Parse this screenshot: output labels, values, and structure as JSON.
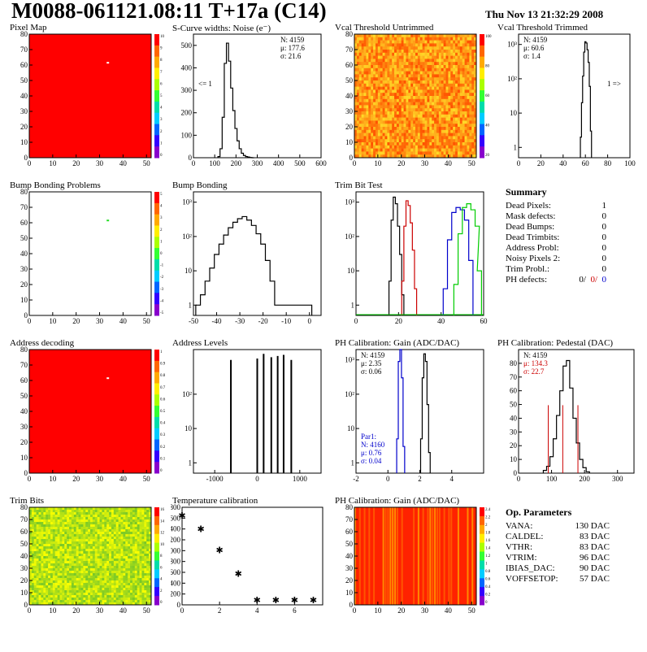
{
  "header": {
    "title": "M0088-061121.08:11 T+17a (C14)",
    "timestamp": "Thu Nov 13 21:32:29 2008"
  },
  "colors": {
    "hist_black": "#000000",
    "hist_red": "#cc0000",
    "hist_blue": "#0000cc",
    "hist_green": "#00cc00",
    "map_red": "#ff0000"
  },
  "chart_data": [
    {
      "id": "pixel-map",
      "type": "heatmap",
      "title": "Pixel Map",
      "xlim": [
        0,
        52
      ],
      "ylim": [
        0,
        80
      ],
      "xticks": [
        "0",
        "10",
        "20",
        "30",
        "40",
        "50"
      ],
      "yticks": [
        "0",
        "10",
        "20",
        "30",
        "40",
        "50",
        "60",
        "70",
        "80"
      ],
      "fill": "uniform-max",
      "scale_max": "10",
      "scale_ticks": [
        "10",
        "9",
        "8",
        "7",
        "6",
        "5",
        "4",
        "3",
        "2",
        "1",
        "0"
      ],
      "highlight_cells": [
        {
          "x": 33,
          "y": 62
        }
      ]
    },
    {
      "id": "s-curve",
      "type": "line",
      "title": "S-Curve widths: Noise (e⁻)",
      "xlim": [
        0,
        600
      ],
      "ylim": [
        0,
        550
      ],
      "xticks": [
        "0",
        "100",
        "200",
        "300",
        "400",
        "500",
        "600"
      ],
      "yticks": [
        "0",
        "100",
        "200",
        "300",
        "400",
        "500"
      ],
      "series": [
        {
          "x": [
            120,
            130,
            140,
            150,
            160,
            170,
            180,
            190,
            200,
            210,
            220,
            230,
            240,
            250,
            260,
            270,
            280
          ],
          "values": [
            5,
            40,
            180,
            420,
            510,
            430,
            310,
            210,
            130,
            75,
            40,
            20,
            10,
            5,
            3,
            1,
            0
          ]
        }
      ],
      "stats": [
        "N: 4159",
        "μ: 177.6",
        "σ: 21.6"
      ],
      "annotation": "<= 1"
    },
    {
      "id": "vcal-untrimmed",
      "type": "heatmap",
      "title": "Vcal Threshold Untrimmed",
      "xlim": [
        0,
        52
      ],
      "ylim": [
        0,
        80
      ],
      "xticks": [
        "0",
        "10",
        "20",
        "30",
        "40",
        "50"
      ],
      "yticks": [
        "0",
        "10",
        "20",
        "30",
        "40",
        "50",
        "60",
        "70",
        "80"
      ],
      "fill": "noise-orange",
      "scale_ticks": [
        "100",
        "80",
        "60",
        "40",
        "20"
      ]
    },
    {
      "id": "vcal-trimmed",
      "type": "line",
      "title": "Vcal Threshold Trimmed",
      "log_y": true,
      "xlim": [
        0,
        100
      ],
      "ylim": [
        0.5,
        2000
      ],
      "xticks": [
        "0",
        "20",
        "40",
        "60",
        "80",
        "100"
      ],
      "yticks": [
        "1",
        "10",
        "10²",
        "10³"
      ],
      "series": [
        {
          "x": [
            56,
            57,
            58,
            59,
            60,
            61,
            62,
            63,
            64,
            65
          ],
          "values": [
            2,
            20,
            120,
            600,
            1200,
            1100,
            700,
            300,
            60,
            3
          ]
        }
      ],
      "stats": [
        "N: 4159",
        "μ: 60.6",
        "σ:  1.4"
      ],
      "annotation": "1 =>"
    },
    {
      "id": "bump-problems",
      "type": "heatmap",
      "title": "Bump Bonding Problems",
      "xlim": [
        0,
        52
      ],
      "ylim": [
        0,
        80
      ],
      "xticks": [
        "0",
        "10",
        "20",
        "30",
        "40",
        "50"
      ],
      "yticks": [
        "0",
        "10",
        "20",
        "30",
        "40",
        "50",
        "60",
        "70",
        "80"
      ],
      "fill": "empty",
      "scale_ticks": [
        "5",
        "4",
        "3",
        "2",
        "1",
        "0",
        "-1",
        "-2",
        "-3",
        "-4",
        "-5"
      ],
      "highlight_cells": [
        {
          "x": 33,
          "y": 62
        }
      ]
    },
    {
      "id": "bump-bonding",
      "type": "line",
      "title": "Bump Bonding",
      "log_y": true,
      "xlim": [
        -50,
        5
      ],
      "ylim": [
        0.5,
        2000
      ],
      "xticks": [
        "-50",
        "-40",
        "-30",
        "-20",
        "-10",
        "0"
      ],
      "yticks": [
        "1",
        "10",
        "10²",
        "10³"
      ],
      "series": [
        {
          "x": [
            -48,
            -46,
            -44,
            -42,
            -40,
            -38,
            -36,
            -34,
            -32,
            -30,
            -28,
            -26,
            -24,
            -22,
            -20,
            -18,
            -16,
            -14,
            0
          ],
          "values": [
            1,
            2,
            5,
            12,
            30,
            60,
            110,
            180,
            260,
            330,
            380,
            300,
            210,
            120,
            60,
            20,
            5,
            1,
            1
          ]
        }
      ]
    },
    {
      "id": "trim-bit-test",
      "type": "line",
      "title": "Trim Bit Test",
      "log_y": true,
      "xlim": [
        0,
        60
      ],
      "ylim": [
        0.5,
        2000
      ],
      "xticks": [
        "0",
        "20",
        "40",
        "60"
      ],
      "yticks": [
        "1",
        "10",
        "10²",
        "10³"
      ],
      "series": [
        {
          "color": "#000000",
          "x": [
            16,
            17,
            18,
            19,
            20,
            21,
            22
          ],
          "values": [
            5,
            300,
            1400,
            900,
            200,
            30,
            2
          ]
        },
        {
          "color": "#cc0000",
          "x": [
            22,
            23,
            24,
            25,
            26,
            27,
            28
          ],
          "values": [
            5,
            200,
            1100,
            800,
            250,
            40,
            3
          ]
        },
        {
          "color": "#0000cc",
          "x": [
            42,
            44,
            46,
            48,
            50,
            52,
            54
          ],
          "values": [
            3,
            80,
            500,
            700,
            600,
            300,
            20
          ]
        },
        {
          "color": "#00cc00",
          "x": [
            47,
            49,
            51,
            53,
            55,
            57,
            58
          ],
          "values": [
            4,
            120,
            700,
            900,
            600,
            200,
            10
          ]
        }
      ]
    },
    {
      "id": "address-decoding",
      "type": "heatmap",
      "title": "Address decoding",
      "xlim": [
        0,
        52
      ],
      "ylim": [
        0,
        80
      ],
      "xticks": [
        "0",
        "10",
        "20",
        "30",
        "40",
        "50"
      ],
      "yticks": [
        "0",
        "10",
        "20",
        "30",
        "40",
        "50",
        "60",
        "70",
        "80"
      ],
      "fill": "uniform-max",
      "scale_ticks": [
        "1",
        "0.9",
        "0.8",
        "0.7",
        "0.6",
        "0.5",
        "0.4",
        "0.3",
        "0.2",
        "0.1",
        "0"
      ],
      "highlight_cells": [
        {
          "x": 33,
          "y": 62
        }
      ]
    },
    {
      "id": "address-levels",
      "type": "line",
      "title": "Address Levels",
      "log_y": true,
      "xlim": [
        -1500,
        1500
      ],
      "ylim": [
        0.5,
        2000
      ],
      "xticks": [
        "-1000",
        "0",
        "1000"
      ],
      "yticks": [
        "1",
        "10",
        "10²"
      ],
      "series": [
        {
          "x": [
            -620,
            0,
            150,
            330,
            480,
            620,
            800
          ],
          "values": [
            1000,
            1100,
            1500,
            1200,
            1300,
            1400,
            1000
          ]
        }
      ]
    },
    {
      "id": "ph-gain",
      "type": "line",
      "title": "PH Calibration: Gain (ADC/DAC)",
      "log_y": true,
      "xlim": [
        -2,
        6
      ],
      "ylim": [
        0.5,
        2000
      ],
      "xticks": [
        "-2",
        "0",
        "2",
        "4"
      ],
      "yticks": [
        "1",
        "10",
        "10²",
        "10³"
      ],
      "series": [
        {
          "color": "#000000",
          "x": [
            2.1,
            2.2,
            2.3,
            2.4,
            2.5,
            2.6
          ],
          "values": [
            5,
            300,
            1500,
            900,
            50,
            2
          ]
        },
        {
          "color": "#0000cc",
          "x": [
            0.6,
            0.7,
            0.8,
            0.9,
            1.0
          ],
          "values": [
            5,
            900,
            2000,
            300,
            3
          ]
        }
      ],
      "stats": [
        "N: 4159",
        "μ: 2.35",
        "σ: 0.06"
      ],
      "stats2": [
        "Par1:",
        "N: 4160",
        "μ: 0.76",
        "σ: 0.04"
      ]
    },
    {
      "id": "ph-pedestal",
      "type": "line",
      "title": "PH Calibration: Pedestal (DAC)",
      "xlim": [
        0,
        350
      ],
      "ylim": [
        0,
        90
      ],
      "xticks": [
        "0",
        "100",
        "200",
        "300"
      ],
      "yticks": [
        "0",
        "10",
        "20",
        "30",
        "40",
        "50",
        "60",
        "70",
        "80"
      ],
      "series": [
        {
          "x": [
            80,
            90,
            100,
            110,
            120,
            130,
            140,
            150,
            160,
            170,
            180,
            190,
            200,
            210
          ],
          "values": [
            2,
            5,
            12,
            25,
            42,
            60,
            78,
            82,
            62,
            40,
            22,
            10,
            4,
            1
          ]
        }
      ],
      "markers": [
        90,
        134,
        180
      ],
      "stats": [
        "N: 4159",
        "μ: 134.3",
        "σ: 22.7"
      ]
    },
    {
      "id": "trim-bits",
      "type": "heatmap",
      "title": "Trim Bits",
      "xlim": [
        0,
        52
      ],
      "ylim": [
        0,
        80
      ],
      "xticks": [
        "0",
        "10",
        "20",
        "30",
        "40",
        "50"
      ],
      "yticks": [
        "0",
        "10",
        "20",
        "30",
        "40",
        "50",
        "60",
        "70",
        "80"
      ],
      "fill": "noise-green",
      "scale_ticks": [
        "16",
        "14",
        "12",
        "10",
        "8",
        "6",
        "4",
        "2",
        "0"
      ]
    },
    {
      "id": "temperature",
      "type": "scatter",
      "title": "Temperature calibration",
      "xlim": [
        0,
        7.5
      ],
      "ylim": [
        0,
        1800
      ],
      "xticks": [
        "0",
        "2",
        "4",
        "6"
      ],
      "yticks": [
        "0",
        "200",
        "400",
        "600",
        "800",
        "1000",
        "1200",
        "1400",
        "1600",
        "1800"
      ],
      "x": [
        0,
        1,
        2,
        3,
        4,
        5,
        6,
        7
      ],
      "values": [
        1650,
        1400,
        1010,
        580,
        90,
        90,
        90,
        90
      ]
    },
    {
      "id": "ph-gain-map",
      "type": "heatmap",
      "title": "PH Calibration: Gain (ADC/DAC)",
      "xlim": [
        0,
        52
      ],
      "ylim": [
        0,
        80
      ],
      "xticks": [
        "0",
        "10",
        "20",
        "30",
        "40",
        "50"
      ],
      "yticks": [
        "0",
        "10",
        "20",
        "30",
        "40",
        "50",
        "60",
        "70",
        "80"
      ],
      "fill": "stripes-red",
      "scale_ticks": [
        "2.4",
        "2.2",
        "2",
        "1.8",
        "1.6",
        "1.4",
        "1.2",
        "1",
        "0.8",
        "0.6",
        "0.4",
        "0.2",
        "0"
      ]
    }
  ],
  "summary": {
    "title": "Summary",
    "rows": [
      {
        "label": "Dead Pixels:",
        "value": "1"
      },
      {
        "label": "Mask defects:",
        "value": "0"
      },
      {
        "label": "Dead Bumps:",
        "value": "0"
      },
      {
        "label": "Dead Trimbits:",
        "value": "0"
      },
      {
        "label": "Address Probl:",
        "value": "0"
      },
      {
        "label": "Noisy Pixels 2:",
        "value": "0"
      },
      {
        "label": "Trim Probl.:",
        "value": "0"
      }
    ],
    "ph_label": "PH defects:",
    "ph_values": [
      {
        "value": "0/",
        "color": "#000000"
      },
      {
        "value": "0/",
        "color": "#cc0000"
      },
      {
        "value": "0",
        "color": "#0000cc"
      }
    ]
  },
  "op_params": {
    "title": "Op. Parameters",
    "rows": [
      {
        "label": "VANA:",
        "value": "130 DAC"
      },
      {
        "label": "CALDEL:",
        "value": "83 DAC"
      },
      {
        "label": "VTHR:",
        "value": "83 DAC"
      },
      {
        "label": "VTRIM:",
        "value": "96 DAC"
      },
      {
        "label": "IBIAS_DAC:",
        "value": "90 DAC"
      },
      {
        "label": "VOFFSETOP:",
        "value": "57 DAC"
      }
    ]
  }
}
